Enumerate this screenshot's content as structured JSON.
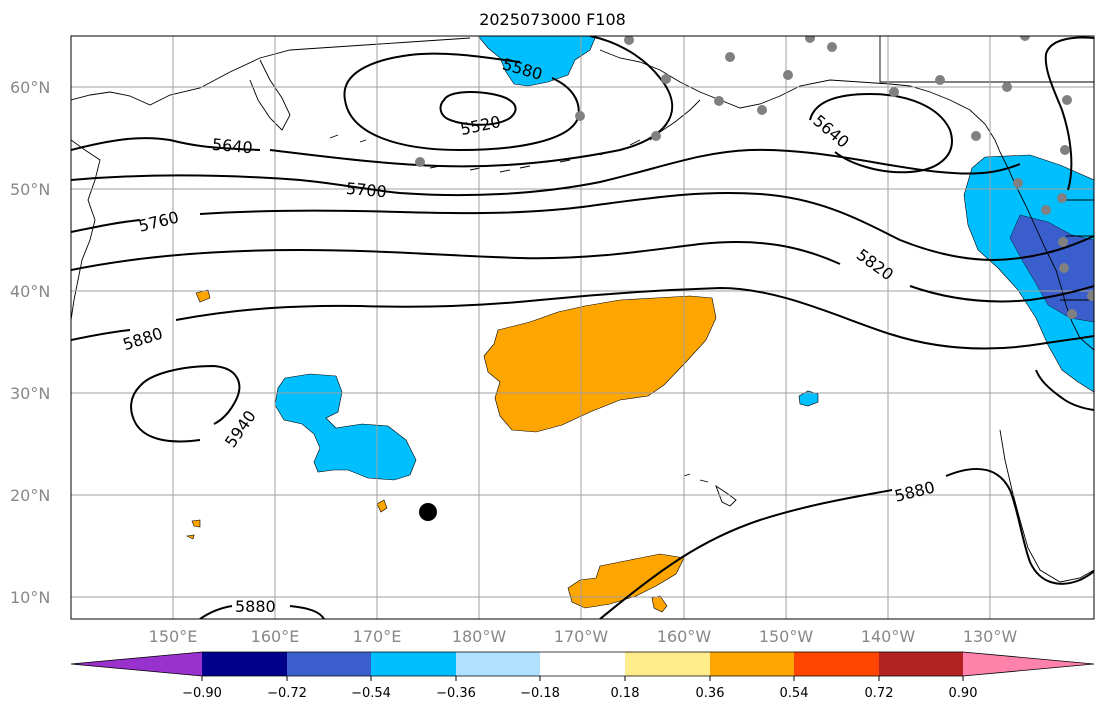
{
  "title": "2025073000 F108",
  "map": {
    "lat_ticks": [
      "60°N",
      "50°N",
      "40°N",
      "30°N",
      "20°N",
      "10°N"
    ],
    "lon_ticks": [
      "150°E",
      "160°E",
      "170°E",
      "180°W",
      "170°W",
      "160°W",
      "150°W",
      "140°W",
      "130°W"
    ],
    "contour_labels": [
      "5520",
      "5580",
      "5640",
      "5640",
      "5700",
      "5760",
      "5820",
      "5880",
      "5880",
      "5880",
      "5940"
    ],
    "contour_color": "#000000",
    "station_marker_color": "#808080",
    "storm_marker_color": "#000000"
  },
  "colorbar": {
    "tick_labels": [
      "−0.90",
      "−0.72",
      "−0.54",
      "−0.36",
      "−0.18",
      "0.18",
      "0.36",
      "0.54",
      "0.72",
      "0.90"
    ],
    "colors": [
      "#9932CC",
      "#00008B",
      "#3A5FCD",
      "#00BFFF",
      "#B0E2FF",
      "#FFFFFF",
      "#FFEC8B",
      "#FFA500",
      "#FF4500",
      "#B22222",
      "#FF82AB"
    ]
  }
}
